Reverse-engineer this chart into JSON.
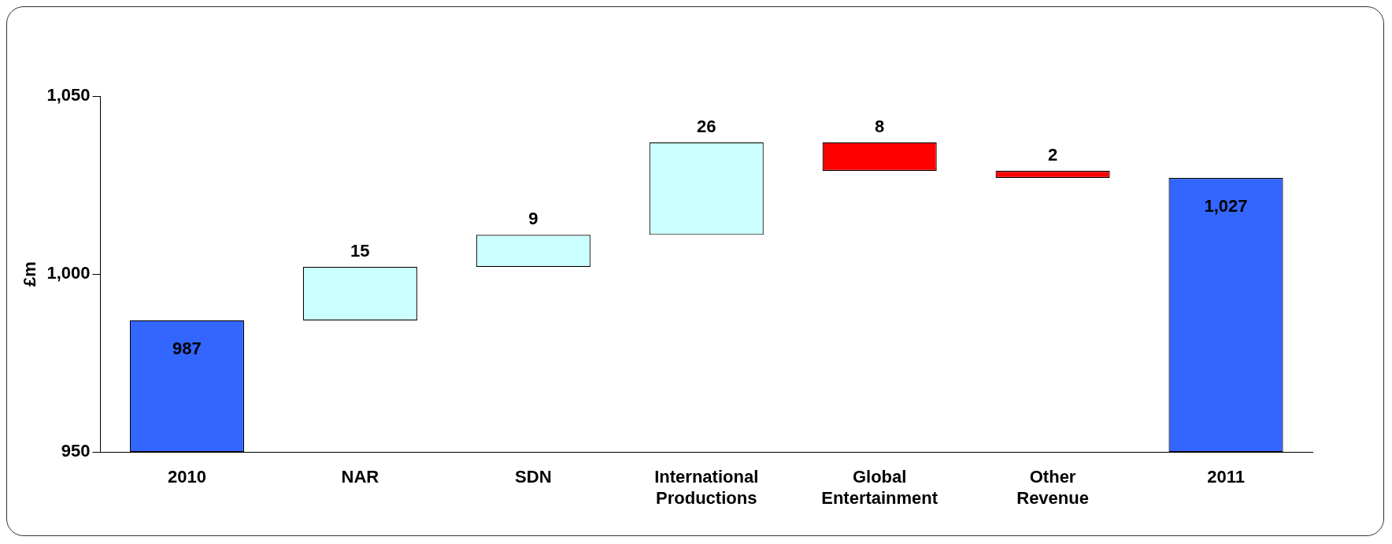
{
  "chart_data": {
    "type": "bar",
    "ylabel": "£m",
    "categories": [
      "2010",
      "NAR",
      "SDN",
      "International Productions",
      "Global Entertainment",
      "Other Revenue",
      "2011"
    ],
    "values": [
      987,
      15,
      9,
      26,
      8,
      2,
      1027
    ],
    "base": [
      null,
      987,
      1002,
      1011,
      1029,
      1027,
      null
    ],
    "colors": [
      "#3366ff",
      "#ccffff",
      "#ccffff",
      "#ccffff",
      "#ff0000",
      "#ff0000",
      "#3366ff"
    ],
    "value_labels": [
      "987",
      "15",
      "9",
      "26",
      "8",
      "2",
      "1,027"
    ],
    "ylim": [
      950,
      1050
    ],
    "yticks": [
      {
        "value": 950,
        "label": "950"
      },
      {
        "value": 1000,
        "label": "1,000"
      },
      {
        "value": 1050,
        "label": "1,050"
      }
    ],
    "grid": false,
    "legend": false
  }
}
